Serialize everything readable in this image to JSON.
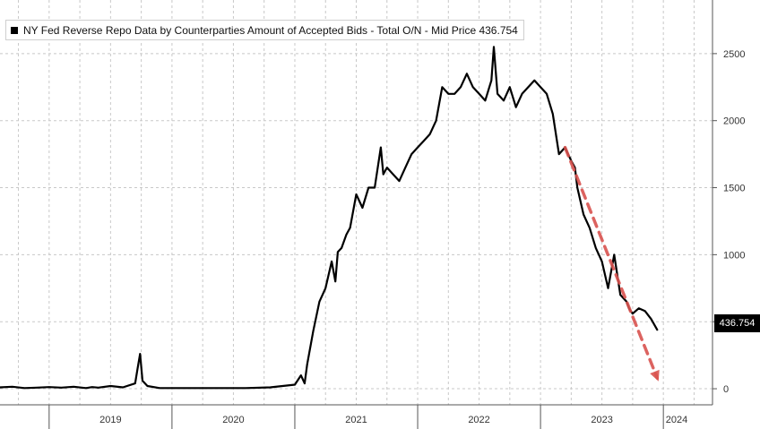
{
  "chart_data": {
    "type": "line",
    "title": "NY Fed Reverse Repo Data by Counterparties Amount of Accepted Bids - Total O/N - Mid Price 436.754",
    "last_value_label": "436.754",
    "xlabel": "",
    "ylabel": "",
    "x_tick_labels": [
      "2019",
      "2020",
      "2021",
      "2022",
      "2023",
      "2024"
    ],
    "y_ticks": [
      0,
      500,
      1000,
      1500,
      2000,
      2500
    ],
    "y_tick_labels": [
      "0",
      "",
      "1000",
      "1500",
      "2000",
      "2500"
    ],
    "xlim": [
      2018.6,
      2024.4
    ],
    "ylim": [
      -120,
      2900
    ],
    "grid": true,
    "legend_position": "top-left",
    "colors": {
      "line": "#000000",
      "trend": "#d9534f",
      "grid": "#c8c8c8"
    },
    "series": [
      {
        "name": "NY Fed Reverse Repo Data by Counterparties Amount of Accepted Bids - Total O/N - Mid Price",
        "x": [
          2018.6,
          2018.7,
          2018.8,
          2018.9,
          2019.0,
          2019.1,
          2019.2,
          2019.3,
          2019.35,
          2019.4,
          2019.5,
          2019.6,
          2019.7,
          2019.72,
          2019.74,
          2019.76,
          2019.8,
          2019.9,
          2020.0,
          2020.2,
          2020.4,
          2020.6,
          2020.8,
          2021.0,
          2021.05,
          2021.08,
          2021.1,
          2021.15,
          2021.2,
          2021.25,
          2021.3,
          2021.33,
          2021.35,
          2021.38,
          2021.42,
          2021.45,
          2021.5,
          2021.55,
          2021.6,
          2021.65,
          2021.7,
          2021.72,
          2021.75,
          2021.8,
          2021.85,
          2021.9,
          2021.95,
          2022.0,
          2022.05,
          2022.1,
          2022.15,
          2022.2,
          2022.25,
          2022.3,
          2022.35,
          2022.4,
          2022.45,
          2022.5,
          2022.55,
          2022.6,
          2022.62,
          2022.65,
          2022.7,
          2022.75,
          2022.8,
          2022.85,
          2022.9,
          2022.95,
          2023.0,
          2023.05,
          2023.1,
          2023.15,
          2023.2,
          2023.25,
          2023.28,
          2023.3,
          2023.35,
          2023.4,
          2023.45,
          2023.5,
          2023.55,
          2023.6,
          2023.65,
          2023.7,
          2023.72,
          2023.75,
          2023.8,
          2023.85,
          2023.9,
          2023.95
        ],
        "y": [
          10,
          15,
          5,
          8,
          12,
          8,
          15,
          5,
          12,
          8,
          20,
          10,
          40,
          150,
          260,
          60,
          20,
          5,
          5,
          5,
          5,
          5,
          10,
          30,
          100,
          40,
          180,
          430,
          650,
          750,
          950,
          800,
          1020,
          1050,
          1150,
          1200,
          1450,
          1350,
          1500,
          1500,
          1800,
          1600,
          1650,
          1600,
          1550,
          1650,
          1750,
          1800,
          1850,
          1900,
          2000,
          2250,
          2200,
          2200,
          2250,
          2350,
          2250,
          2200,
          2150,
          2300,
          2550,
          2200,
          2150,
          2250,
          2100,
          2200,
          2250,
          2300,
          2250,
          2200,
          2050,
          1750,
          1800,
          1700,
          1650,
          1500,
          1300,
          1200,
          1050,
          950,
          750,
          1000,
          700,
          650,
          600,
          560,
          600,
          580,
          520,
          440
        ]
      },
      {
        "name": "",
        "x": [
          2023.2,
          2023.95
        ],
        "y": [
          1800,
          80
        ]
      }
    ]
  }
}
